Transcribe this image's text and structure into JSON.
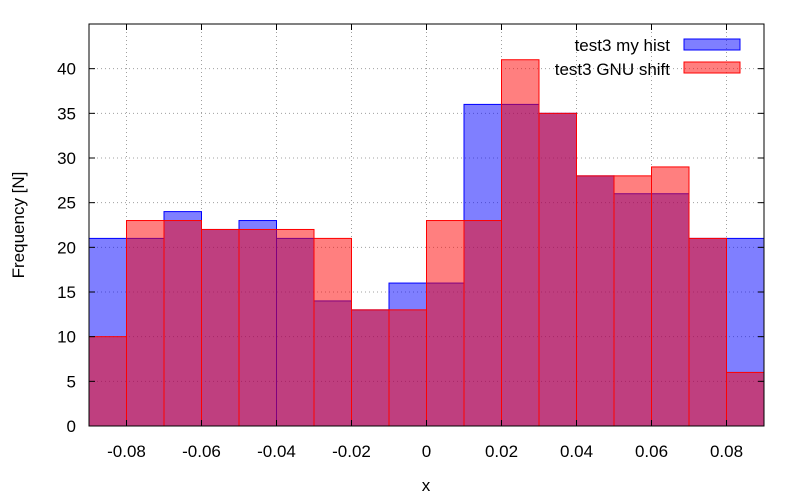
{
  "chart_data": {
    "type": "bar",
    "title": "",
    "xlabel": "x",
    "ylabel": "Frequency [N]",
    "xlim": [
      -0.09,
      0.09
    ],
    "ylim": [
      0,
      45
    ],
    "xticks": [
      -0.08,
      -0.06,
      -0.04,
      -0.02,
      0,
      0.02,
      0.04,
      0.06,
      0.08
    ],
    "xtick_labels": [
      "-0.08",
      "-0.06",
      "-0.04",
      "-0.02",
      "0",
      "0.02",
      "0.04",
      "0.06",
      "0.08"
    ],
    "yticks": [
      0,
      5,
      10,
      15,
      20,
      25,
      30,
      35,
      40
    ],
    "grid": true,
    "legend_position": "top-right",
    "bin_width": 0.01,
    "series": [
      {
        "name": "test3 my hist",
        "color": "#0000ff",
        "x": [
          -0.09,
          -0.08,
          -0.07,
          -0.06,
          -0.05,
          -0.04,
          -0.03,
          -0.02,
          -0.01,
          0.0,
          0.01,
          0.02,
          0.03,
          0.04,
          0.05,
          0.06,
          0.07,
          0.08
        ],
        "values": [
          21,
          21,
          24,
          22,
          23,
          21,
          14,
          13,
          16,
          16,
          36,
          36,
          35,
          28,
          26,
          26,
          21,
          21
        ]
      },
      {
        "name": "test3 GNU shift",
        "color": "#ff0000",
        "x": [
          -0.09,
          -0.08,
          -0.07,
          -0.06,
          -0.05,
          -0.03,
          -0.02,
          -0.01,
          0.0,
          0.01,
          0.02,
          0.03,
          0.04,
          0.05,
          0.06,
          0.07,
          0.08
        ],
        "widths": [
          0.01,
          0.01,
          0.01,
          0.01,
          0.02,
          0.01,
          0.01,
          0.01,
          0.01,
          0.01,
          0.01,
          0.01,
          0.01,
          0.01,
          0.01,
          0.01,
          0.01
        ],
        "values": [
          10,
          23,
          23,
          22,
          22,
          21,
          13,
          13,
          23,
          23,
          41,
          35,
          28,
          28,
          29,
          21,
          6
        ]
      }
    ]
  }
}
